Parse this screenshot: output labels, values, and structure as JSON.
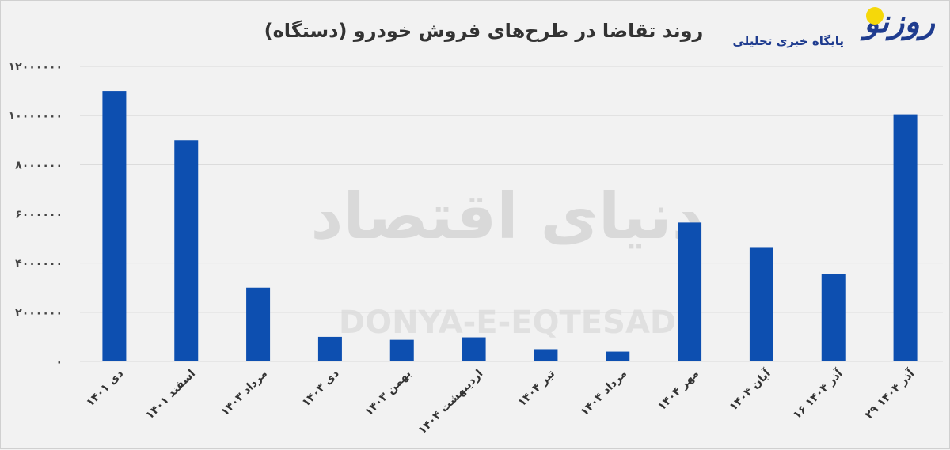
{
  "chart_data": {
    "type": "bar",
    "title": "روند تقاضا در طرح‌های فروش خودرو (دستگاه)",
    "xlabel": "",
    "ylabel": "",
    "categories": [
      "دی ۱۴۰۱",
      "اسفند ۱۴۰۱",
      "مرداد ۱۴۰۳",
      "دی ۱۴۰۳",
      "بهمن ۱۴۰۳",
      "اردیبهشت ۱۴۰۴",
      "تیر ۱۴۰۴",
      "مرداد ۱۴۰۴",
      "مهر ۱۴۰۴",
      "آبان ۱۴۰۴",
      "۱۶ آذر ۱۴۰۴",
      "۲۹ آذر ۱۴۰۴"
    ],
    "values": [
      11000000,
      9000000,
      3000000,
      1000000,
      880000,
      980000,
      500000,
      400000,
      5650000,
      4650000,
      3550000,
      10050000
    ],
    "ylim": [
      0,
      12000000
    ],
    "yticks": [
      0,
      2000000,
      4000000,
      6000000,
      8000000,
      10000000,
      12000000
    ],
    "ytick_labels": [
      "۰",
      "۲۰۰۰۰۰۰",
      "۴۰۰۰۰۰۰",
      "۶۰۰۰۰۰۰",
      "۸۰۰۰۰۰۰",
      "۱۰۰۰۰۰۰۰",
      "۱۲۰۰۰۰۰۰"
    ],
    "grid": true,
    "legend": "none",
    "bar_color": "#0d4fb0"
  },
  "watermark": {
    "fa": "دنیای اقتصاد",
    "en": "DONYA-E-EQTESAD"
  },
  "logo": {
    "name": "روزنو",
    "tagline": "پایگاه خبری تحلیلی"
  }
}
